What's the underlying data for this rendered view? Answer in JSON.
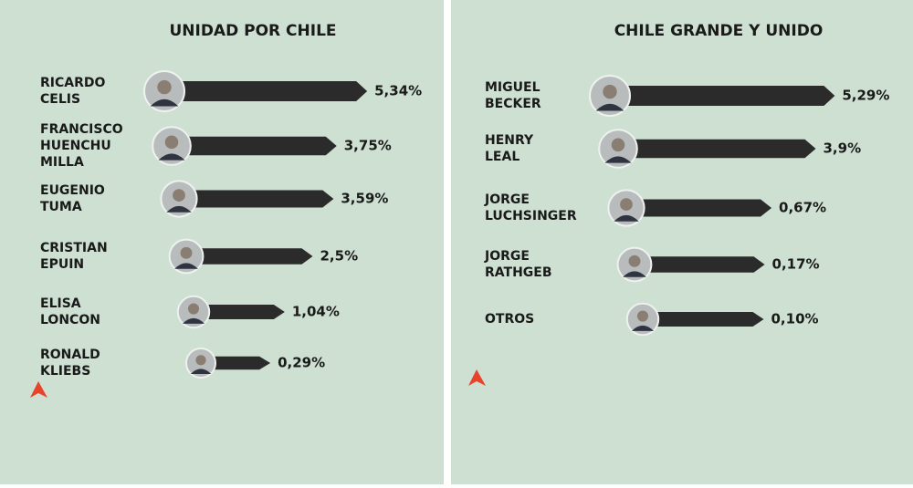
{
  "chart_data": [
    {
      "type": "bar",
      "orientation": "horizontal",
      "title": "UNIDAD POR CHILE",
      "categories": [
        "RICARDO CELIS",
        "FRANCISCO HUENCHU MILLA",
        "EUGENIO TUMA",
        "CRISTIAN EPUIN",
        "ELISA LONCON",
        "RONALD KLIEBS"
      ],
      "values": [
        5.34,
        3.75,
        3.59,
        2.5,
        1.04,
        0.29
      ],
      "value_labels": [
        "5,34%",
        "3,75%",
        "3,59%",
        "2,5%",
        "1,04%",
        "0,29%"
      ],
      "color": "#2b2b2b"
    },
    {
      "type": "bar",
      "orientation": "horizontal",
      "title": "CHILE GRANDE Y UNIDO",
      "categories": [
        "MIGUEL BECKER",
        "HENRY LEAL",
        "JORGE LUCHSINGER",
        "JORGE RATHGEB",
        "OTROS"
      ],
      "values": [
        5.29,
        3.9,
        0.67,
        0.17,
        0.1
      ],
      "value_labels": [
        "5,29%",
        "3,9%",
        "0,67%",
        "0,17%",
        "0,10%"
      ],
      "color": "#2b2b2b"
    }
  ]
}
